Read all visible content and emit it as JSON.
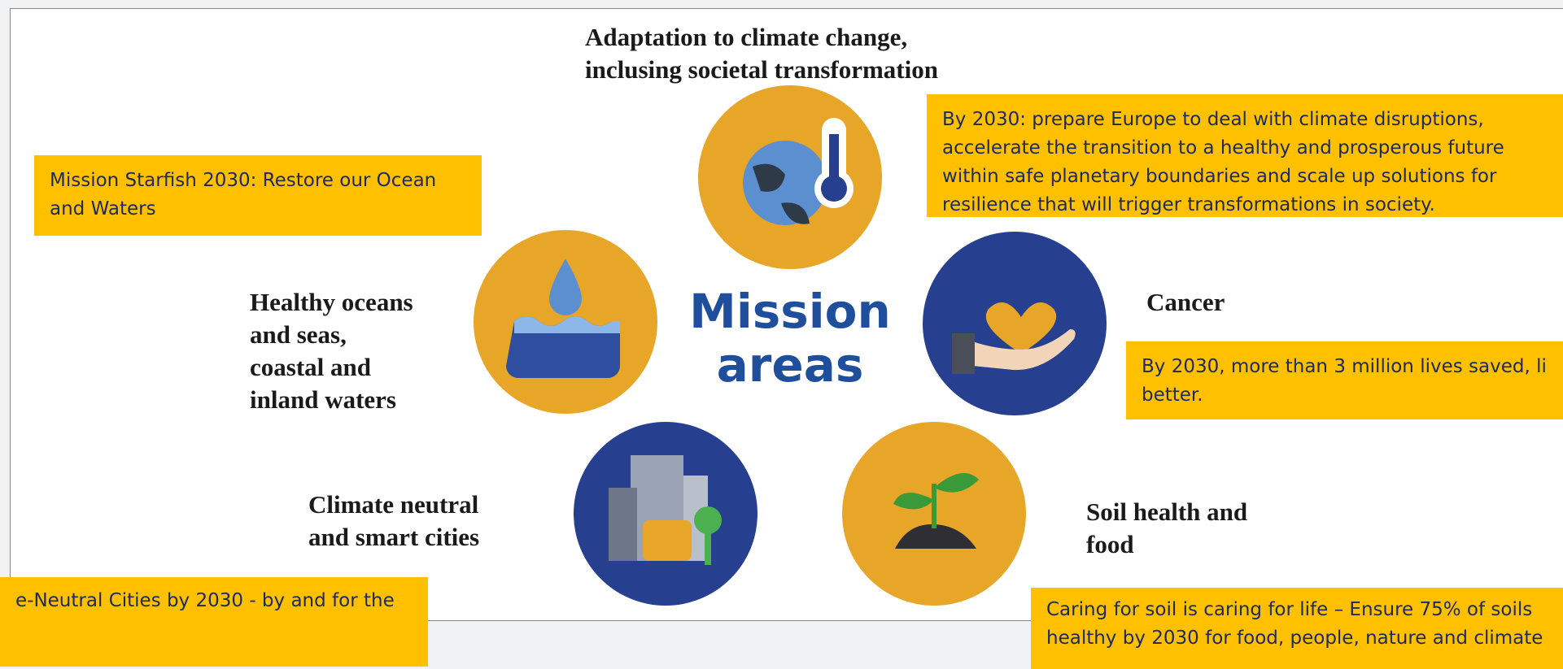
{
  "center_label": [
    "Mission",
    "areas"
  ],
  "areas": [
    {
      "label": [
        "Adaptation to climate change,",
        "inclusing societal transformation"
      ]
    },
    {
      "label": [
        "Healthy oceans",
        "and seas,",
        "coastal and",
        "inland waters"
      ]
    },
    {
      "label": [
        "Cancer"
      ]
    },
    {
      "label": [
        "Climate neutral",
        "and smart cities"
      ]
    },
    {
      "label": [
        "Soil health and",
        "food"
      ]
    }
  ],
  "callouts": [
    {
      "lines": [
        "By 2030: prepare Europe to deal with climate disruptions,",
        "accelerate the transition to a healthy and prosperous future",
        "within safe planetary boundaries and scale up solutions for",
        "resilience that will trigger transformations in society."
      ]
    },
    {
      "lines": [
        "Mission Starfish 2030: Restore our Ocean",
        "and Waters"
      ]
    },
    {
      "lines": [
        "By 2030, more than 3 million lives saved, li",
        "better."
      ]
    },
    {
      "lines": [
        "e-Neutral Cities by 2030 - by and for the"
      ]
    },
    {
      "lines": [
        "Caring for soil is caring for life – Ensure 75% of soils",
        "healthy by 2030 for food, people, nature and climate"
      ]
    }
  ]
}
